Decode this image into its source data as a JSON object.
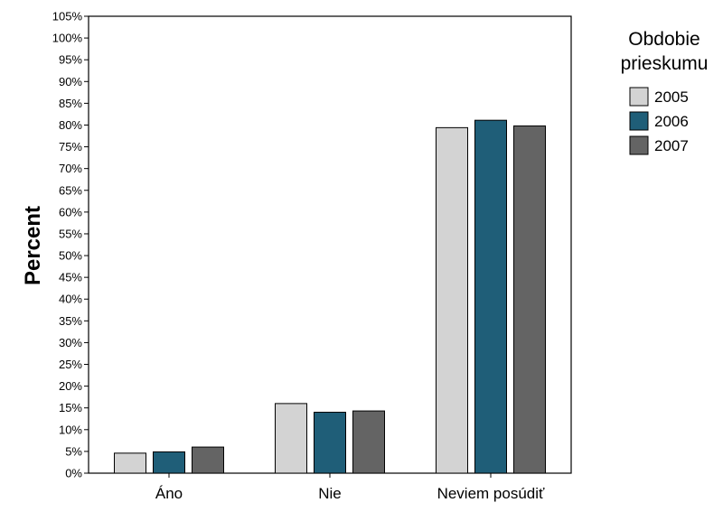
{
  "chart_data": {
    "type": "bar",
    "title": "",
    "xlabel": "",
    "ylabel": "Percent",
    "ylim": [
      0,
      105
    ],
    "y_tick_step": 5,
    "y_tick_suffix": "%",
    "grid": false,
    "legend_position": "right",
    "legend_title_lines": [
      "Obdobie",
      "prieskumu"
    ],
    "categories": [
      "Áno",
      "Nie",
      "Neviem posúdiť"
    ],
    "series": [
      {
        "name": "2005",
        "color": "#d3d3d3",
        "values": [
          4.6,
          16.0,
          79.4
        ]
      },
      {
        "name": "2006",
        "color": "#1f5e78",
        "values": [
          4.9,
          14.0,
          81.1
        ]
      },
      {
        "name": "2007",
        "color": "#646464",
        "values": [
          6.0,
          14.3,
          79.8
        ]
      }
    ]
  }
}
